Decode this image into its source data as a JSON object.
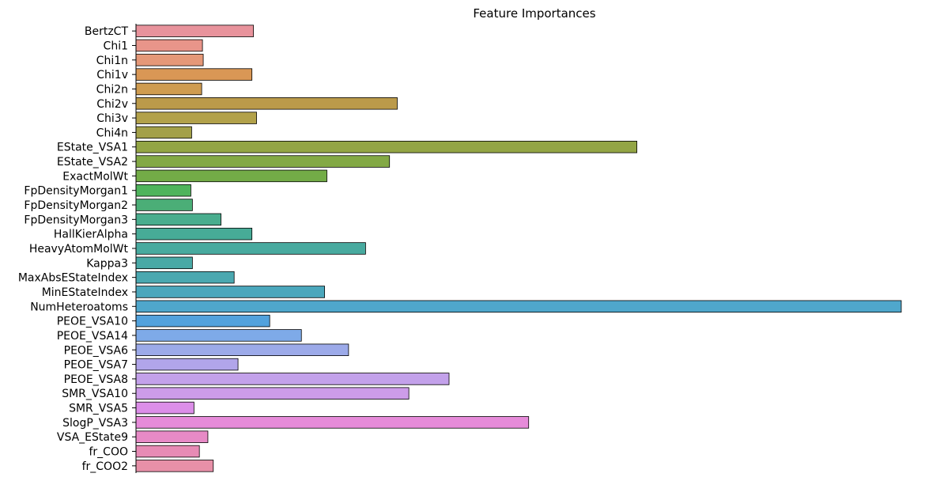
{
  "chart_data": {
    "type": "bar",
    "orientation": "horizontal",
    "title": "Feature Importances",
    "xlabel": "",
    "ylabel": "",
    "grid": false,
    "xlim": [
      0,
      0.99
    ],
    "categories": [
      "BertzCT",
      "Chi1",
      "Chi1n",
      "Chi1v",
      "Chi2n",
      "Chi2v",
      "Chi3v",
      "Chi4n",
      "EState_VSA1",
      "EState_VSA2",
      "ExactMolWt",
      "FpDensityMorgan1",
      "FpDensityMorgan2",
      "FpDensityMorgan3",
      "HallKierAlpha",
      "HeavyAtomMolWt",
      "Kappa3",
      "MaxAbsEStateIndex",
      "MinEStateIndex",
      "NumHeteroatoms",
      "PEOE_VSA10",
      "PEOE_VSA14",
      "PEOE_VSA6",
      "PEOE_VSA7",
      "PEOE_VSA8",
      "SMR_VSA10",
      "SMR_VSA5",
      "SlogP_VSA3",
      "VSA_EState9",
      "fr_COO",
      "fr_COO2"
    ],
    "values": [
      0.152,
      0.086,
      0.087,
      0.15,
      0.085,
      0.338,
      0.156,
      0.072,
      0.648,
      0.328,
      0.247,
      0.071,
      0.073,
      0.11,
      0.15,
      0.297,
      0.073,
      0.127,
      0.244,
      0.99,
      0.173,
      0.214,
      0.275,
      0.132,
      0.405,
      0.353,
      0.075,
      0.508,
      0.093,
      0.082,
      0.1
    ],
    "colors": [
      "#e8939c",
      "#e8958a",
      "#e59878",
      "#d99755",
      "#cf9c50",
      "#bb9a4a",
      "#b2a14a",
      "#a3a048",
      "#93a545",
      "#83a945",
      "#73ac47",
      "#4fb45c",
      "#4bae77",
      "#49ad8e",
      "#47ab97",
      "#48aa9f",
      "#49a9a6",
      "#4aa8b0",
      "#4ba7bc",
      "#4fa7cc",
      "#52a2dd",
      "#7eaae8",
      "#9caae9",
      "#b1a5ea",
      "#c3a1ea",
      "#cd9ce9",
      "#dc8ee8",
      "#e68bd9",
      "#e78ac6",
      "#e78bb5",
      "#e790a8"
    ]
  }
}
